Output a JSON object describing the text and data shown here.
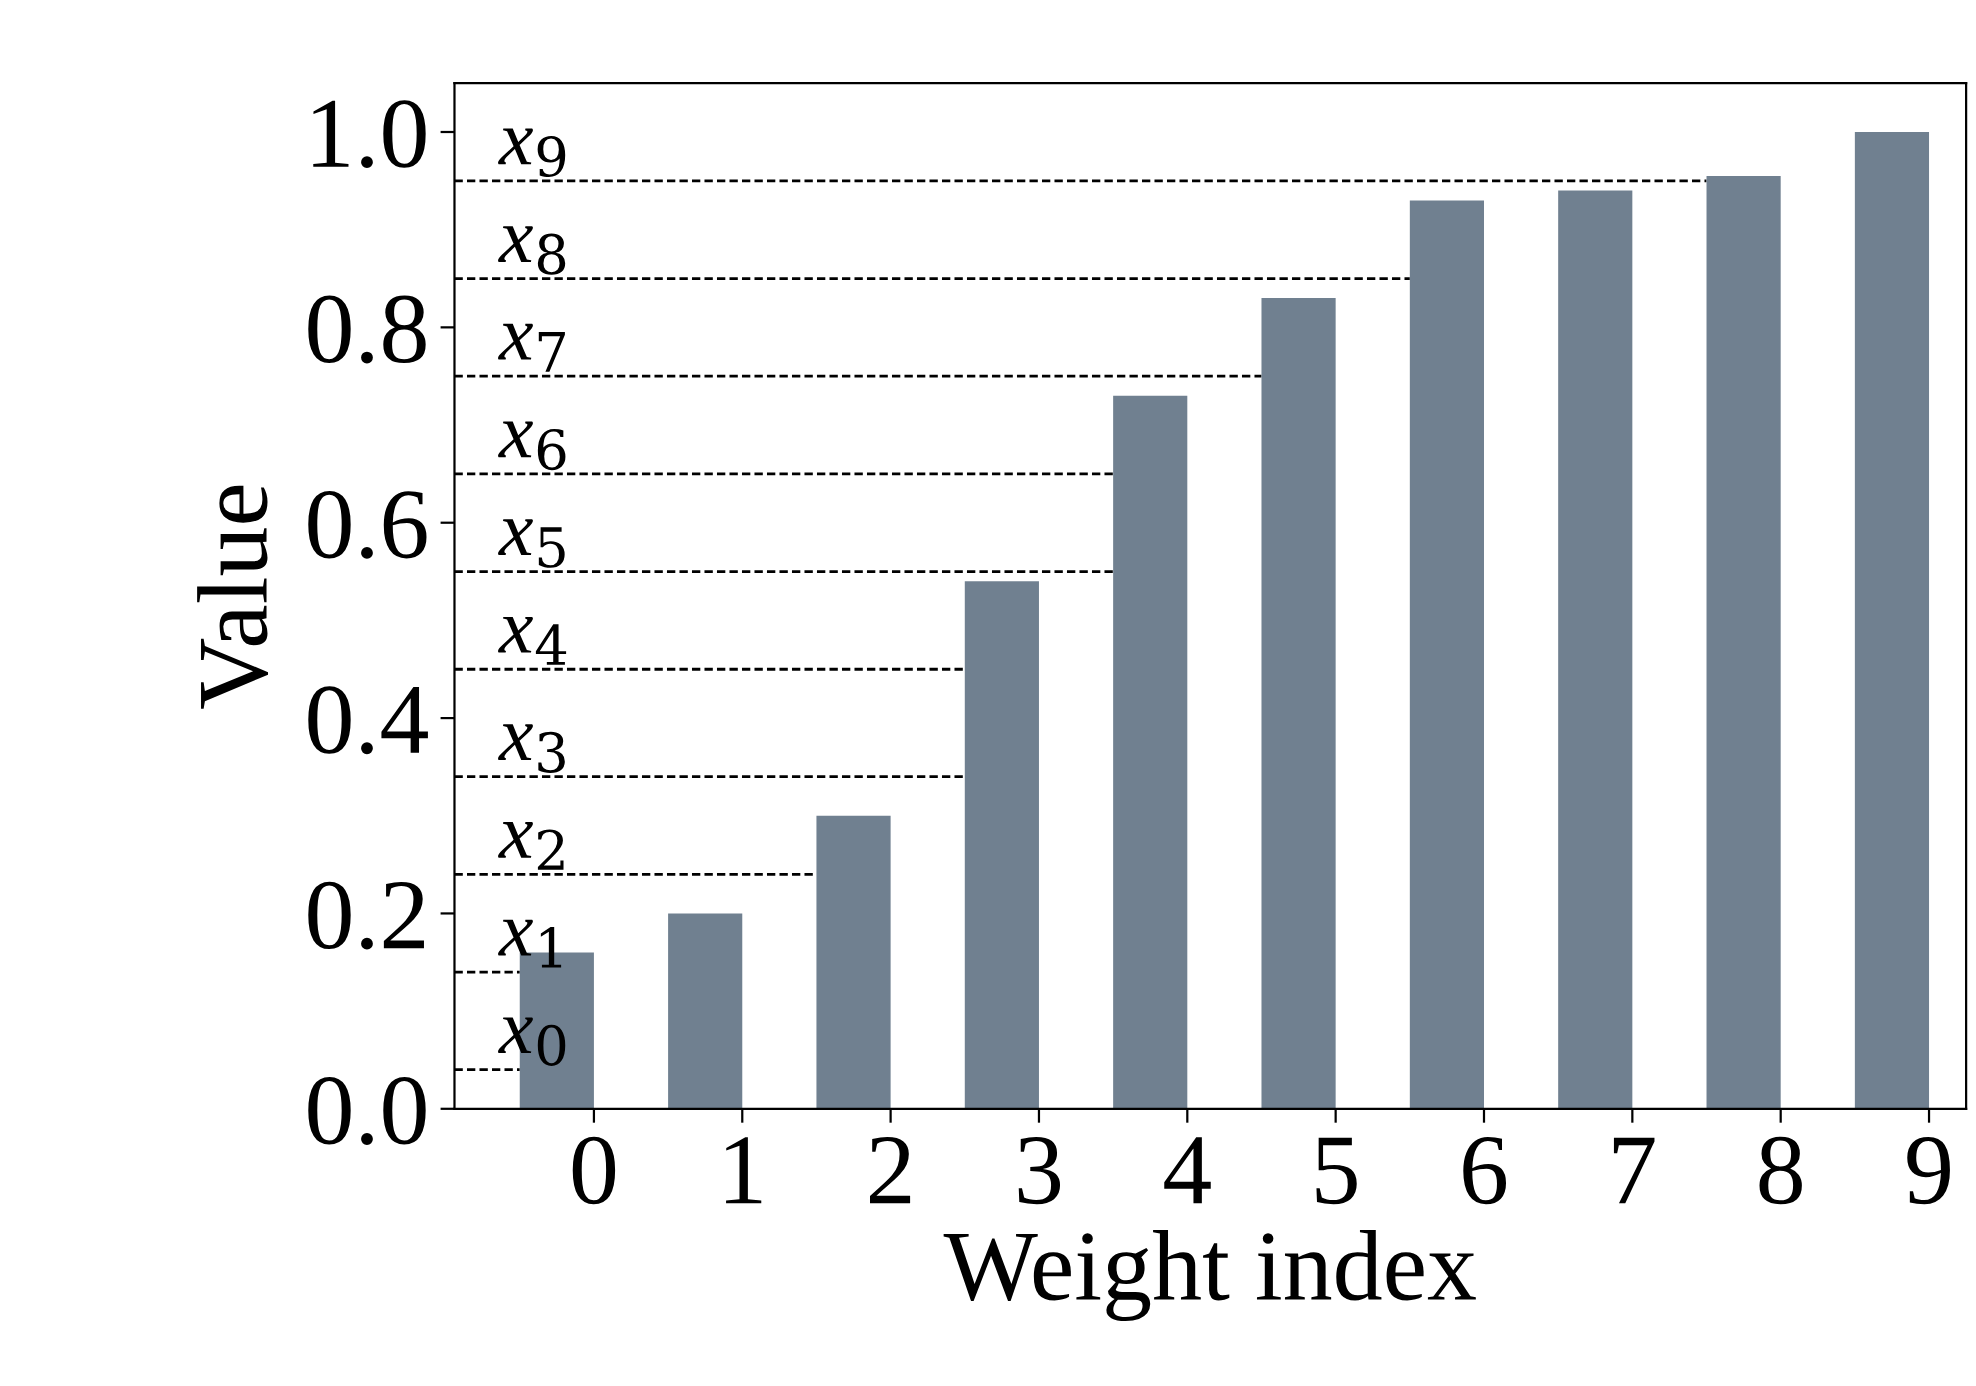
{
  "chart_data": {
    "type": "bar",
    "xlabel": "Weight index",
    "ylabel": "Value",
    "categories": [
      "0",
      "1",
      "2",
      "3",
      "4",
      "5",
      "6",
      "7",
      "8",
      "9"
    ],
    "values": [
      0.16,
      0.2,
      0.3,
      0.54,
      0.73,
      0.83,
      0.93,
      0.94,
      0.955,
      1.0
    ],
    "color": "#708090",
    "ylim": [
      0,
      1.05
    ],
    "yticks": [
      {
        "value": 0,
        "label": "0.0"
      },
      {
        "value": 0.2,
        "label": "0.2"
      },
      {
        "value": 0.4,
        "label": "0.4"
      },
      {
        "value": 0.6,
        "label": "0.6"
      },
      {
        "value": 0.8,
        "label": "0.8"
      },
      {
        "value": 1.0,
        "label": "1.0"
      }
    ],
    "grid": false,
    "legend": false,
    "ref_lines": [
      {
        "axis": "y",
        "value": 0.04,
        "label": "x$_{0}$",
        "color": "#000000",
        "line_style": "dashed"
      },
      {
        "axis": "y",
        "value": 0.14,
        "label": "x$_{1}$",
        "color": "#000000",
        "line_style": "dashed"
      },
      {
        "axis": "y",
        "value": 0.24,
        "label": "x$_{2}$",
        "color": "#000000",
        "line_style": "dashed"
      },
      {
        "axis": "y",
        "value": 0.34,
        "label": "x$_{3}$",
        "color": "#000000",
        "line_style": "dashed"
      },
      {
        "axis": "y",
        "value": 0.45,
        "label": "x$_{4}$",
        "color": "#000000",
        "line_style": "dashed"
      },
      {
        "axis": "y",
        "value": 0.55,
        "label": "x$_{5}$",
        "color": "#000000",
        "line_style": "dashed"
      },
      {
        "axis": "y",
        "value": 0.65,
        "label": "x$_{6}$",
        "color": "#000000",
        "line_style": "dashed"
      },
      {
        "axis": "y",
        "value": 0.75,
        "label": "x$_{7}$",
        "color": "#000000",
        "line_style": "dashed"
      },
      {
        "axis": "y",
        "value": 0.85,
        "label": "x$_{8}$",
        "color": "#000000",
        "line_style": "dashed"
      },
      {
        "axis": "y",
        "value": 0.95,
        "label": "x$_{9}$",
        "color": "#000000",
        "line_style": "dashed"
      }
    ]
  }
}
